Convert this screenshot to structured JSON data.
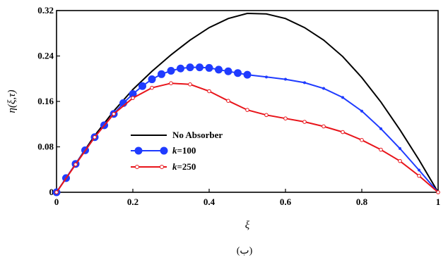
{
  "chart_data": {
    "type": "line",
    "xlabel": "ξ",
    "ylabel": "η(ξ,τ)",
    "xlim": [
      0,
      1
    ],
    "ylim": [
      0,
      0.32
    ],
    "xticks": [
      "0",
      "0.2",
      "0.4",
      "0.6",
      "0.8",
      "1"
    ],
    "yticks": [
      "0",
      "0.08",
      "0.16",
      "0.24",
      "0.32"
    ],
    "grid": false,
    "legend_position": "lower-left",
    "caption": "(ب)",
    "series": [
      {
        "name": "No Absorber",
        "color": "#000000",
        "marker": "none",
        "x": [
          0,
          0.05,
          0.1,
          0.15,
          0.2,
          0.25,
          0.3,
          0.35,
          0.4,
          0.45,
          0.5,
          0.55,
          0.6,
          0.65,
          0.7,
          0.75,
          0.8,
          0.85,
          0.9,
          0.95,
          1
        ],
        "y": [
          0,
          0.05,
          0.1,
          0.143,
          0.181,
          0.213,
          0.242,
          0.268,
          0.29,
          0.306,
          0.315,
          0.314,
          0.306,
          0.29,
          0.268,
          0.239,
          0.202,
          0.159,
          0.11,
          0.057,
          0
        ]
      },
      {
        "name": "k=100",
        "name_italic": "k",
        "name_rest": "=100",
        "color": "#1f3bff",
        "marker": "circle",
        "x": [
          0,
          0.025,
          0.05,
          0.075,
          0.1,
          0.125,
          0.15,
          0.175,
          0.2,
          0.225,
          0.25,
          0.275,
          0.3,
          0.325,
          0.35,
          0.375,
          0.4,
          0.425,
          0.45,
          0.475,
          0.5,
          0.55,
          0.6,
          0.65,
          0.7,
          0.75,
          0.8,
          0.85,
          0.9,
          0.95,
          1
        ],
        "y": [
          0,
          0.025,
          0.05,
          0.074,
          0.097,
          0.118,
          0.138,
          0.157,
          0.173,
          0.187,
          0.199,
          0.208,
          0.214,
          0.218,
          0.22,
          0.22,
          0.219,
          0.216,
          0.213,
          0.21,
          0.207,
          0.203,
          0.199,
          0.193,
          0.183,
          0.167,
          0.143,
          0.112,
          0.077,
          0.039,
          0
        ]
      },
      {
        "name": "k=250",
        "name_italic": "k",
        "name_rest": "=250",
        "color": "#e8141a",
        "marker": "open-circle",
        "x": [
          0,
          0.05,
          0.1,
          0.15,
          0.2,
          0.25,
          0.3,
          0.35,
          0.4,
          0.45,
          0.5,
          0.55,
          0.6,
          0.65,
          0.7,
          0.75,
          0.8,
          0.85,
          0.9,
          0.95,
          1
        ],
        "y": [
          0,
          0.049,
          0.097,
          0.138,
          0.166,
          0.184,
          0.192,
          0.19,
          0.178,
          0.161,
          0.145,
          0.136,
          0.13,
          0.124,
          0.116,
          0.106,
          0.092,
          0.075,
          0.055,
          0.029,
          0
        ]
      }
    ]
  }
}
